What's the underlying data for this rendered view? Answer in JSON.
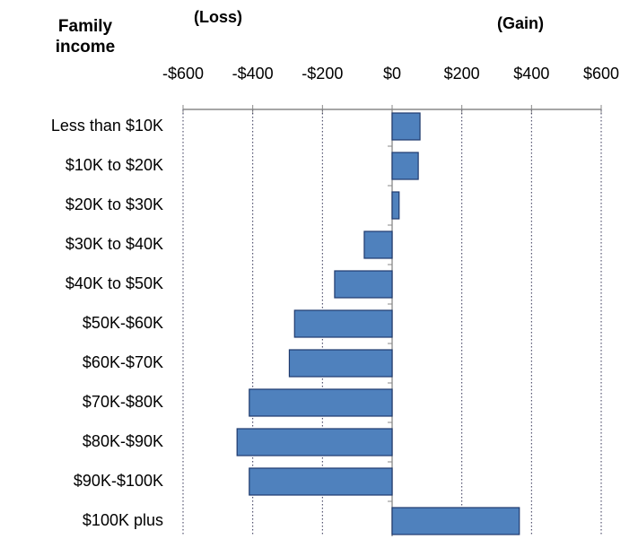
{
  "chart_data": {
    "type": "hbar",
    "title": "Family income",
    "annotations": [
      "(Loss)",
      "(Gain)"
    ],
    "categories": [
      "Less than $10K",
      "$10K to $20K",
      "$20K to $30K",
      "$30K to $40K",
      "$40K to $50K",
      "$50K-$60K",
      "$60K-$70K",
      "$70K-$80K",
      "$80K-$90K",
      "$90K-$100K",
      "$100K plus"
    ],
    "values": [
      80,
      75,
      20,
      -80,
      -165,
      -280,
      -295,
      -410,
      -445,
      -410,
      365
    ],
    "color": "#4f81bd",
    "xlim": [
      -600,
      600
    ],
    "xticks": [
      {
        "value": -600,
        "label": "-$600"
      },
      {
        "value": -400,
        "label": "-$400"
      },
      {
        "value": -200,
        "label": "-$200"
      },
      {
        "value": 0,
        "label": "$0"
      },
      {
        "value": 200,
        "label": "$200"
      },
      {
        "value": 400,
        "label": "$400"
      },
      {
        "value": 600,
        "label": "$600"
      }
    ],
    "grid": true
  }
}
